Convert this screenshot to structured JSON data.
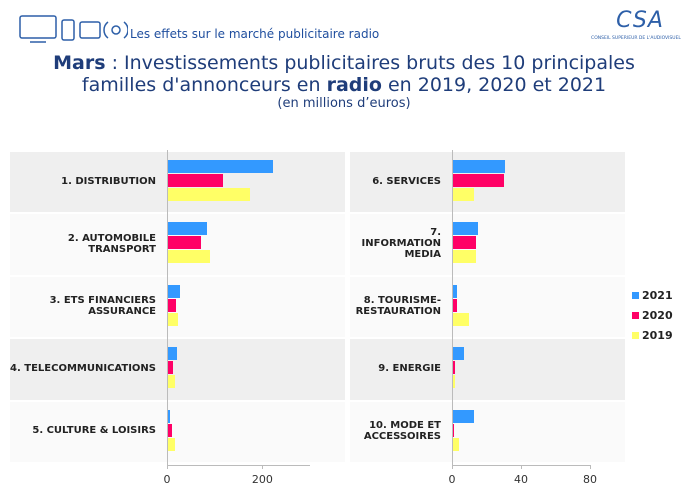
{
  "header": {
    "subtitle": "Les effets sur le marché publicitaire radio",
    "logo": "CSA",
    "logo_caption": "CONSEIL SUPERIEUR DE L'AUDIOVISUEL",
    "title": [
      "Mars",
      " : Investissements publicitaires bruts des 10 principales familles d'annonceurs en ",
      "radio",
      " en 2019, 2020 et 2021"
    ],
    "units": "(en millions d’euros)"
  },
  "chart_data": [
    {
      "type": "hbar",
      "categories": [
        "1. DISTRIBUTION",
        "2. AUTOMOBILE TRANSPORT",
        "3. ETS FINANCIERS ASSURANCE",
        "4. TELECOMMUNICATIONS",
        "5. CULTURE & LOISIRS"
      ],
      "series": [
        {
          "name": "2021",
          "color": "#3399ff",
          "values": [
            223,
            83,
            27,
            21,
            6
          ]
        },
        {
          "name": "2020",
          "color": "#ff0066",
          "values": [
            117,
            71,
            19,
            13,
            10
          ]
        },
        {
          "name": "2019",
          "color": "#ffff66",
          "values": [
            175,
            90,
            23,
            17,
            17
          ]
        }
      ],
      "xlim": [
        0,
        300
      ],
      "xticks": [
        0,
        200
      ]
    },
    {
      "type": "hbar",
      "categories": [
        "6. SERVICES",
        "7. INFORMATION MEDIA",
        "8. TOURISME-RESTAURATION",
        "9. ENERGIE",
        "10. MODE ET ACCESSOIRES"
      ],
      "series": [
        {
          "name": "2021",
          "color": "#3399ff",
          "values": [
            31,
            15,
            3,
            7,
            13
          ]
        },
        {
          "name": "2020",
          "color": "#ff0066",
          "values": [
            30,
            14,
            3,
            2,
            1
          ]
        },
        {
          "name": "2019",
          "color": "#ffff66",
          "values": [
            13,
            14,
            10,
            2,
            4
          ]
        }
      ],
      "xlim": [
        0,
        80
      ],
      "xticks": [
        0,
        40,
        80
      ],
      "legend": "right"
    }
  ]
}
